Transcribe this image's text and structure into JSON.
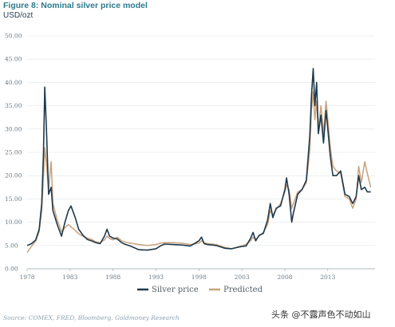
{
  "header": {
    "title": "Figure 8: Nominal silver price model",
    "unit": "USD/ozt"
  },
  "footer": {
    "source": "Source: COMEX, FRED, Bloomberg, Goldmoney Research",
    "watermark": "头条 @不露声色不动如山"
  },
  "colors": {
    "silver_price": "#1f3a4d",
    "predicted": "#c9a27a",
    "title": "#2b7a8c",
    "axis_text": "#6b7a85",
    "grid": "#e2e6ea"
  },
  "chart_data": {
    "type": "line",
    "title": "Figure 8: Nominal silver price model",
    "ylabel": "USD/ozt",
    "xlabel": "",
    "ylim": [
      0,
      50
    ],
    "xlim": [
      1978,
      2018.5
    ],
    "yticks": [
      "0.00",
      "5.00",
      "10.00",
      "15.00",
      "20.00",
      "25.00",
      "30.00",
      "35.00",
      "40.00",
      "45.00",
      "50.00"
    ],
    "xticks": [
      "1978",
      "1983",
      "1988",
      "1993",
      "1998",
      "2003",
      "2008",
      "2013"
    ],
    "grid": true,
    "legend_position": "bottom-center",
    "series": [
      {
        "name": "Silver price",
        "x": [
          1978,
          1978.5,
          1979,
          1979.4,
          1979.7,
          1979.9,
          1980.05,
          1980.25,
          1980.5,
          1980.8,
          1981,
          1981.5,
          1982,
          1982.4,
          1982.8,
          1983.1,
          1983.6,
          1984,
          1984.5,
          1985,
          1985.5,
          1986,
          1986.5,
          1987,
          1987.3,
          1987.6,
          1988,
          1988.5,
          1989,
          1989.5,
          1990,
          1991,
          1992,
          1993,
          1993.5,
          1994,
          1995,
          1996,
          1997,
          1998,
          1998.3,
          1998.6,
          1999,
          2000,
          2001,
          2001.8,
          2002.5,
          2003,
          2003.5,
          2004,
          2004.3,
          2004.6,
          2005,
          2005.5,
          2006,
          2006.3,
          2006.6,
          2007,
          2007.5,
          2008,
          2008.2,
          2008.5,
          2008.8,
          2009,
          2009.5,
          2010,
          2010.5,
          2010.9,
          2011.1,
          2011.3,
          2011.5,
          2011.7,
          2011.9,
          2012.2,
          2012.5,
          2012.8,
          2013,
          2013.3,
          2013.6,
          2014,
          2014.5,
          2015,
          2015.5,
          2015.9,
          2016.3,
          2016.6,
          2016.9,
          2017.3,
          2017.6,
          2018
        ],
        "values": [
          5.0,
          5.4,
          6.2,
          8.5,
          14.0,
          25.0,
          39.0,
          30.0,
          16.0,
          17.5,
          12.5,
          9.5,
          7.0,
          10.0,
          12.5,
          13.5,
          11.0,
          8.5,
          7.2,
          6.3,
          6.0,
          5.6,
          5.4,
          7.0,
          8.5,
          7.0,
          6.6,
          6.4,
          5.6,
          5.2,
          4.9,
          4.1,
          4.0,
          4.3,
          4.9,
          5.3,
          5.2,
          5.1,
          4.9,
          6.0,
          6.8,
          5.4,
          5.2,
          5.0,
          4.4,
          4.3,
          4.6,
          4.8,
          4.9,
          6.5,
          7.8,
          6.0,
          7.2,
          7.6,
          10.5,
          14.0,
          11.0,
          13.0,
          13.5,
          17.0,
          19.5,
          16.0,
          10.0,
          12.0,
          16.0,
          17.0,
          19.0,
          28.5,
          37.0,
          43.0,
          35.0,
          40.0,
          29.0,
          33.0,
          27.0,
          34.0,
          30.0,
          24.0,
          20.0,
          20.0,
          21.0,
          16.0,
          15.5,
          14.0,
          15.5,
          20.0,
          17.0,
          17.5,
          16.5,
          16.5
        ]
      },
      {
        "name": "Predicted",
        "x": [
          1978,
          1978.5,
          1979,
          1979.4,
          1979.7,
          1979.9,
          1980.05,
          1980.25,
          1980.5,
          1980.8,
          1981,
          1981.5,
          1982,
          1982.4,
          1982.8,
          1983.1,
          1983.6,
          1984,
          1984.5,
          1985,
          1985.5,
          1986,
          1986.5,
          1987,
          1987.3,
          1987.6,
          1988,
          1988.5,
          1989,
          1989.5,
          1990,
          1991,
          1992,
          1993,
          1993.5,
          1994,
          1995,
          1996,
          1997,
          1998,
          1998.3,
          1998.6,
          1999,
          2000,
          2001,
          2001.8,
          2002.5,
          2003,
          2003.5,
          2004,
          2004.3,
          2004.6,
          2005,
          2005.5,
          2006,
          2006.3,
          2006.6,
          2007,
          2007.5,
          2008,
          2008.2,
          2008.5,
          2008.8,
          2009,
          2009.5,
          2010,
          2010.5,
          2010.9,
          2011.1,
          2011.3,
          2011.5,
          2011.7,
          2011.9,
          2012.2,
          2012.5,
          2012.8,
          2013,
          2013.3,
          2013.6,
          2014,
          2014.5,
          2015,
          2015.5,
          2015.9,
          2016.3,
          2016.6,
          2016.9,
          2017.3,
          2017.6,
          2018
        ],
        "values": [
          3.5,
          4.8,
          6.0,
          8.0,
          12.5,
          20.0,
          26.0,
          22.5,
          17.0,
          23.0,
          14.0,
          10.5,
          8.0,
          8.8,
          9.5,
          9.0,
          8.2,
          7.5,
          7.0,
          6.6,
          6.3,
          5.8,
          5.6,
          6.2,
          7.0,
          6.5,
          6.2,
          6.8,
          6.0,
          5.7,
          5.5,
          5.2,
          5.0,
          5.2,
          5.5,
          5.6,
          5.6,
          5.5,
          5.2,
          5.5,
          6.0,
          5.6,
          5.4,
          5.2,
          4.6,
          4.3,
          4.7,
          4.9,
          5.3,
          6.0,
          6.8,
          6.3,
          7.0,
          7.8,
          9.5,
          12.5,
          11.5,
          12.8,
          14.0,
          16.5,
          18.0,
          17.0,
          13.0,
          14.0,
          16.5,
          17.0,
          18.5,
          25.5,
          34.0,
          38.0,
          32.0,
          36.0,
          30.0,
          35.0,
          29.0,
          36.0,
          32.0,
          26.0,
          22.0,
          21.0,
          20.5,
          15.5,
          15.0,
          13.0,
          15.0,
          22.0,
          18.5,
          23.0,
          20.5,
          17.5
        ]
      }
    ]
  }
}
